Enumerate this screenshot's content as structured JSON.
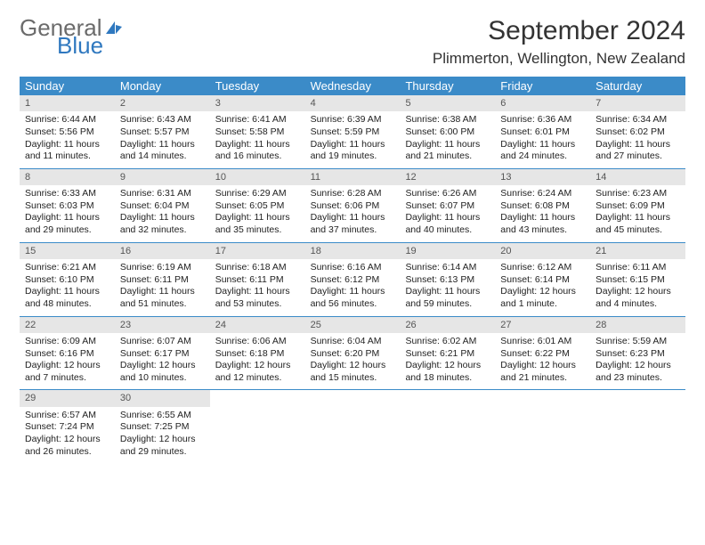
{
  "logo": {
    "text1": "General",
    "text2": "Blue",
    "color_general": "#6b6b6b",
    "color_blue": "#2f78bf",
    "icon_color": "#2f78bf"
  },
  "title": "September 2024",
  "location": "Plimmerton, Wellington, New Zealand",
  "colors": {
    "header_bg": "#3b8bc8",
    "header_text": "#ffffff",
    "daynum_bg": "#e6e6e6",
    "daynum_text": "#555555",
    "week_border": "#3b8bc8",
    "body_text": "#222222"
  },
  "fonts": {
    "title_size": 30,
    "location_size": 17,
    "header_size": 13,
    "cell_size": 10.5
  },
  "day_names": [
    "Sunday",
    "Monday",
    "Tuesday",
    "Wednesday",
    "Thursday",
    "Friday",
    "Saturday"
  ],
  "weeks": [
    [
      {
        "num": "1",
        "sunrise": "Sunrise: 6:44 AM",
        "sunset": "Sunset: 5:56 PM",
        "daylight": "Daylight: 11 hours and 11 minutes."
      },
      {
        "num": "2",
        "sunrise": "Sunrise: 6:43 AM",
        "sunset": "Sunset: 5:57 PM",
        "daylight": "Daylight: 11 hours and 14 minutes."
      },
      {
        "num": "3",
        "sunrise": "Sunrise: 6:41 AM",
        "sunset": "Sunset: 5:58 PM",
        "daylight": "Daylight: 11 hours and 16 minutes."
      },
      {
        "num": "4",
        "sunrise": "Sunrise: 6:39 AM",
        "sunset": "Sunset: 5:59 PM",
        "daylight": "Daylight: 11 hours and 19 minutes."
      },
      {
        "num": "5",
        "sunrise": "Sunrise: 6:38 AM",
        "sunset": "Sunset: 6:00 PM",
        "daylight": "Daylight: 11 hours and 21 minutes."
      },
      {
        "num": "6",
        "sunrise": "Sunrise: 6:36 AM",
        "sunset": "Sunset: 6:01 PM",
        "daylight": "Daylight: 11 hours and 24 minutes."
      },
      {
        "num": "7",
        "sunrise": "Sunrise: 6:34 AM",
        "sunset": "Sunset: 6:02 PM",
        "daylight": "Daylight: 11 hours and 27 minutes."
      }
    ],
    [
      {
        "num": "8",
        "sunrise": "Sunrise: 6:33 AM",
        "sunset": "Sunset: 6:03 PM",
        "daylight": "Daylight: 11 hours and 29 minutes."
      },
      {
        "num": "9",
        "sunrise": "Sunrise: 6:31 AM",
        "sunset": "Sunset: 6:04 PM",
        "daylight": "Daylight: 11 hours and 32 minutes."
      },
      {
        "num": "10",
        "sunrise": "Sunrise: 6:29 AM",
        "sunset": "Sunset: 6:05 PM",
        "daylight": "Daylight: 11 hours and 35 minutes."
      },
      {
        "num": "11",
        "sunrise": "Sunrise: 6:28 AM",
        "sunset": "Sunset: 6:06 PM",
        "daylight": "Daylight: 11 hours and 37 minutes."
      },
      {
        "num": "12",
        "sunrise": "Sunrise: 6:26 AM",
        "sunset": "Sunset: 6:07 PM",
        "daylight": "Daylight: 11 hours and 40 minutes."
      },
      {
        "num": "13",
        "sunrise": "Sunrise: 6:24 AM",
        "sunset": "Sunset: 6:08 PM",
        "daylight": "Daylight: 11 hours and 43 minutes."
      },
      {
        "num": "14",
        "sunrise": "Sunrise: 6:23 AM",
        "sunset": "Sunset: 6:09 PM",
        "daylight": "Daylight: 11 hours and 45 minutes."
      }
    ],
    [
      {
        "num": "15",
        "sunrise": "Sunrise: 6:21 AM",
        "sunset": "Sunset: 6:10 PM",
        "daylight": "Daylight: 11 hours and 48 minutes."
      },
      {
        "num": "16",
        "sunrise": "Sunrise: 6:19 AM",
        "sunset": "Sunset: 6:11 PM",
        "daylight": "Daylight: 11 hours and 51 minutes."
      },
      {
        "num": "17",
        "sunrise": "Sunrise: 6:18 AM",
        "sunset": "Sunset: 6:11 PM",
        "daylight": "Daylight: 11 hours and 53 minutes."
      },
      {
        "num": "18",
        "sunrise": "Sunrise: 6:16 AM",
        "sunset": "Sunset: 6:12 PM",
        "daylight": "Daylight: 11 hours and 56 minutes."
      },
      {
        "num": "19",
        "sunrise": "Sunrise: 6:14 AM",
        "sunset": "Sunset: 6:13 PM",
        "daylight": "Daylight: 11 hours and 59 minutes."
      },
      {
        "num": "20",
        "sunrise": "Sunrise: 6:12 AM",
        "sunset": "Sunset: 6:14 PM",
        "daylight": "Daylight: 12 hours and 1 minute."
      },
      {
        "num": "21",
        "sunrise": "Sunrise: 6:11 AM",
        "sunset": "Sunset: 6:15 PM",
        "daylight": "Daylight: 12 hours and 4 minutes."
      }
    ],
    [
      {
        "num": "22",
        "sunrise": "Sunrise: 6:09 AM",
        "sunset": "Sunset: 6:16 PM",
        "daylight": "Daylight: 12 hours and 7 minutes."
      },
      {
        "num": "23",
        "sunrise": "Sunrise: 6:07 AM",
        "sunset": "Sunset: 6:17 PM",
        "daylight": "Daylight: 12 hours and 10 minutes."
      },
      {
        "num": "24",
        "sunrise": "Sunrise: 6:06 AM",
        "sunset": "Sunset: 6:18 PM",
        "daylight": "Daylight: 12 hours and 12 minutes."
      },
      {
        "num": "25",
        "sunrise": "Sunrise: 6:04 AM",
        "sunset": "Sunset: 6:20 PM",
        "daylight": "Daylight: 12 hours and 15 minutes."
      },
      {
        "num": "26",
        "sunrise": "Sunrise: 6:02 AM",
        "sunset": "Sunset: 6:21 PM",
        "daylight": "Daylight: 12 hours and 18 minutes."
      },
      {
        "num": "27",
        "sunrise": "Sunrise: 6:01 AM",
        "sunset": "Sunset: 6:22 PM",
        "daylight": "Daylight: 12 hours and 21 minutes."
      },
      {
        "num": "28",
        "sunrise": "Sunrise: 5:59 AM",
        "sunset": "Sunset: 6:23 PM",
        "daylight": "Daylight: 12 hours and 23 minutes."
      }
    ],
    [
      {
        "num": "29",
        "sunrise": "Sunrise: 6:57 AM",
        "sunset": "Sunset: 7:24 PM",
        "daylight": "Daylight: 12 hours and 26 minutes."
      },
      {
        "num": "30",
        "sunrise": "Sunrise: 6:55 AM",
        "sunset": "Sunset: 7:25 PM",
        "daylight": "Daylight: 12 hours and 29 minutes."
      },
      null,
      null,
      null,
      null,
      null
    ]
  ]
}
